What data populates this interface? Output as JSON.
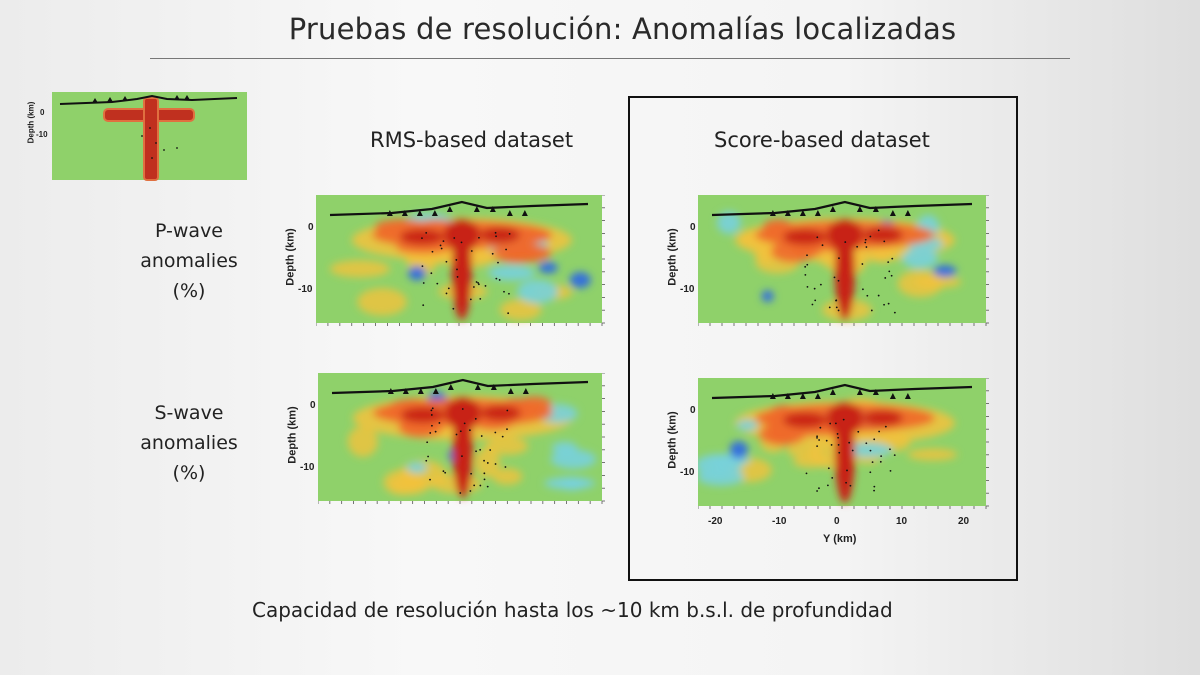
{
  "slide": {
    "title": "Pruebas de resolución: Anomalías localizadas",
    "columns": {
      "rms": "RMS-based dataset",
      "score": "Score-based dataset"
    },
    "rows": {
      "p_wave": [
        "P-wave",
        "anomalies",
        "(%)"
      ],
      "s_wave": [
        "S-wave",
        "anomalies",
        "(%)"
      ]
    },
    "axes": {
      "depth_label": "Depth (km)",
      "depth_ticks": [
        "0",
        "-10"
      ],
      "x_label": "Y (km)",
      "x_ticks": [
        "-20",
        "-10",
        "0",
        "10",
        "20"
      ]
    },
    "synthetic_model": {
      "depth_label": "Depth (km)",
      "depth_ticks": [
        "0",
        "-10"
      ]
    },
    "bottom_text": "Capacidad de resolución hasta los ~10 km b.s.l. de profundidad"
  },
  "colors": {
    "background_field": "#8fd16a",
    "positive_strong": "#c82418",
    "positive_mid": "#ee6a2c",
    "positive_weak": "#f3c23c",
    "negative_weak": "#78d2dc",
    "negative_strong": "#2f6be0",
    "topography": "#111111"
  },
  "icons": [
    "station-triangle-icon",
    "hypocenter-dot-icon"
  ]
}
